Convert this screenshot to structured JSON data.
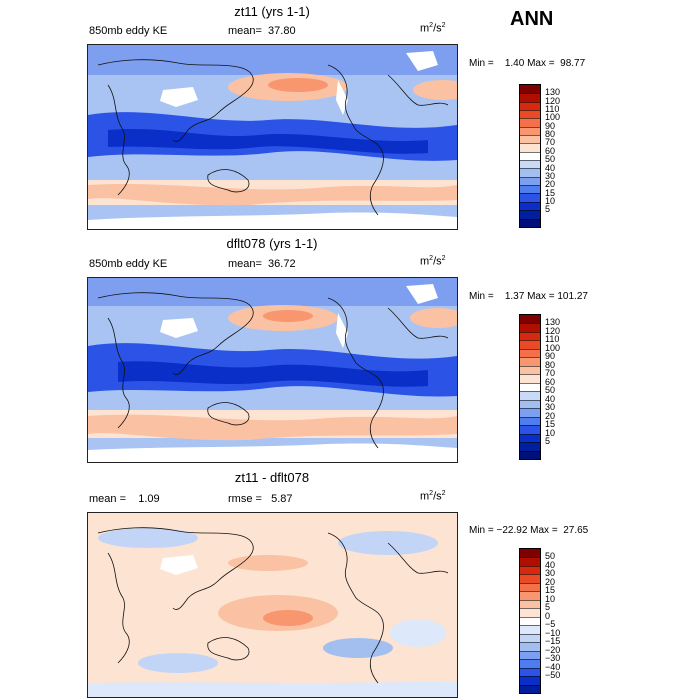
{
  "season_label": "ANN",
  "units": {
    "base": "m",
    "exp": "2",
    "denom": "/s",
    "denom_exp": "2"
  },
  "panels": [
    {
      "id": "top",
      "title": "zt11 (yrs 1-1)",
      "variable": "850mb eddy KE",
      "stat_text": "mean=  37.80",
      "minmax_text": "Min =    1.40 Max =  98.77",
      "ticks": [
        "130",
        "120",
        "110",
        "100",
        "90",
        "80",
        "70",
        "60",
        "50",
        "40",
        "30",
        "20",
        "15",
        "10",
        "5"
      ]
    },
    {
      "id": "middle",
      "title": "dflt078 (yrs 1-1)",
      "variable": "850mb eddy KE",
      "stat_text": "mean=  36.72",
      "minmax_text": "Min =    1.37 Max = 101.27",
      "ticks": [
        "130",
        "120",
        "110",
        "100",
        "90",
        "80",
        "70",
        "60",
        "50",
        "40",
        "30",
        "20",
        "15",
        "10",
        "5"
      ]
    },
    {
      "id": "bottom",
      "title": "zt11 - dflt078",
      "stat_left": "mean =    1.09",
      "stat_right": "rmse =   5.87",
      "minmax_text": "Min = −22.92 Max =  27.65",
      "ticks": [
        "50",
        "40",
        "30",
        "20",
        "15",
        "10",
        "5",
        "0",
        "−5",
        "−10",
        "−15",
        "−20",
        "−30",
        "−40",
        "−50"
      ]
    }
  ],
  "colors": {
    "abs_scale": [
      "#7e0000",
      "#b00f00",
      "#d52a0f",
      "#ea4a26",
      "#f4704a",
      "#f8966f",
      "#fac1a3",
      "#fde3d2",
      "#ffffff",
      "#c9daf6",
      "#a3bff0",
      "#7c9ff0",
      "#4e7df0",
      "#2b53e6",
      "#0a2ec8",
      "#001f9c",
      "#00107a"
    ],
    "diff_scale": [
      "#7e0000",
      "#b00f00",
      "#d52a0f",
      "#ea4a26",
      "#f4704a",
      "#f8966f",
      "#fac1a3",
      "#fde3d2",
      "#ffffff",
      "#dde8fb",
      "#c3d5f7",
      "#a3bff0",
      "#7c9ff0",
      "#4e7df0",
      "#2b53e6",
      "#0a2ec8",
      "#001f9c"
    ]
  }
}
